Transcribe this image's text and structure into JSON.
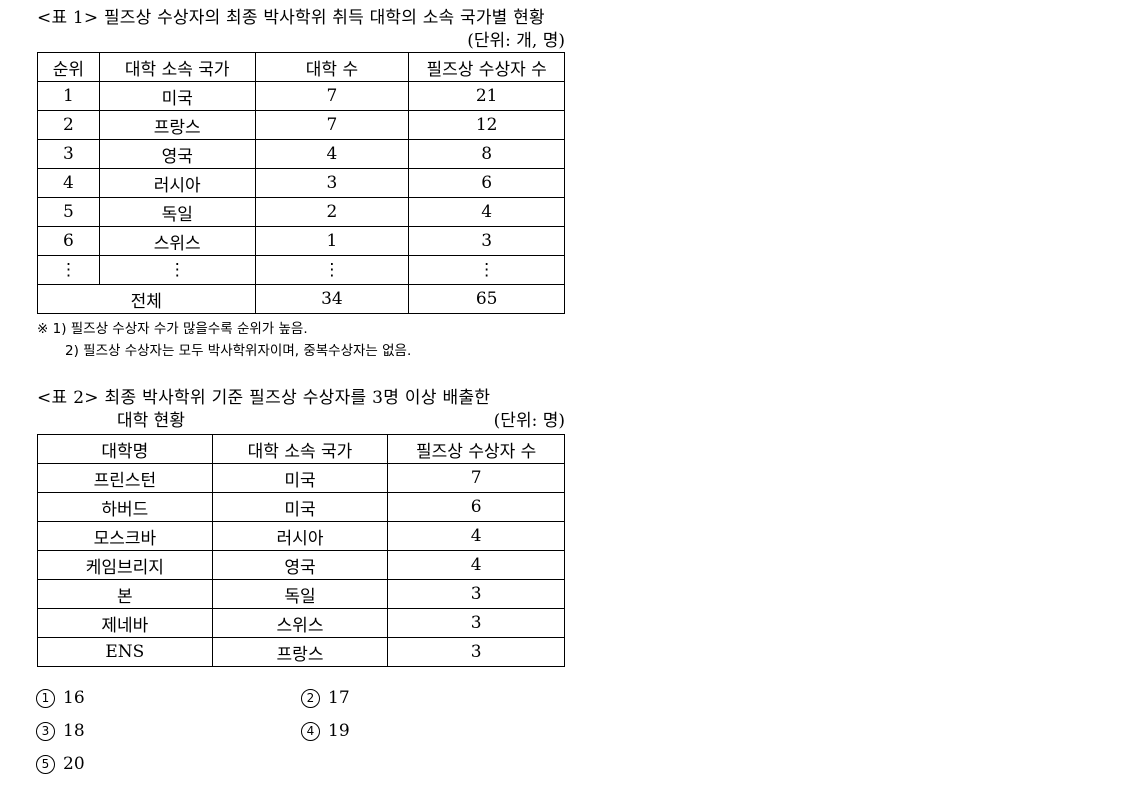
{
  "table1": {
    "title": "<표 1> 필즈상 수상자의 최종 박사학위 취득 대학의 소속 국가별 현황",
    "unit": "(단위: 개, 명)",
    "headers": [
      "순위",
      "대학 소속 국가",
      "대학 수",
      "필즈상 수상자 수"
    ],
    "rows": [
      [
        "1",
        "미국",
        "7",
        "21"
      ],
      [
        "2",
        "프랑스",
        "7",
        "12"
      ],
      [
        "3",
        "영국",
        "4",
        "8"
      ],
      [
        "4",
        "러시아",
        "3",
        "6"
      ],
      [
        "5",
        "독일",
        "2",
        "4"
      ],
      [
        "6",
        "스위스",
        "1",
        "3"
      ],
      [
        "⋮",
        "⋮",
        "⋮",
        "⋮"
      ]
    ],
    "total": [
      "전체",
      "34",
      "65"
    ],
    "notes": [
      "※ 1) 필즈상 수상자 수가 많을수록 순위가 높음.",
      "2) 필즈상 수상자는 모두 박사학위자이며, 중복수상자는 없음."
    ]
  },
  "table2": {
    "title_line1": "<표 2> 최종 박사학위 기준 필즈상 수상자를 3명 이상 배출한",
    "title_line2": "대학 현황",
    "unit": "(단위: 명)",
    "headers": [
      "대학명",
      "대학 소속 국가",
      "필즈상 수상자 수"
    ],
    "rows": [
      [
        "프린스턴",
        "미국",
        "7"
      ],
      [
        "하버드",
        "미국",
        "6"
      ],
      [
        "모스크바",
        "러시아",
        "4"
      ],
      [
        "케임브리지",
        "영국",
        "4"
      ],
      [
        "본",
        "독일",
        "3"
      ],
      [
        "제네바",
        "스위스",
        "3"
      ],
      [
        "ENS",
        "프랑스",
        "3"
      ]
    ]
  },
  "choices": [
    {
      "mark": "1",
      "text": "16"
    },
    {
      "mark": "2",
      "text": "17"
    },
    {
      "mark": "3",
      "text": "18"
    },
    {
      "mark": "4",
      "text": "19"
    },
    {
      "mark": "5",
      "text": "20"
    }
  ]
}
